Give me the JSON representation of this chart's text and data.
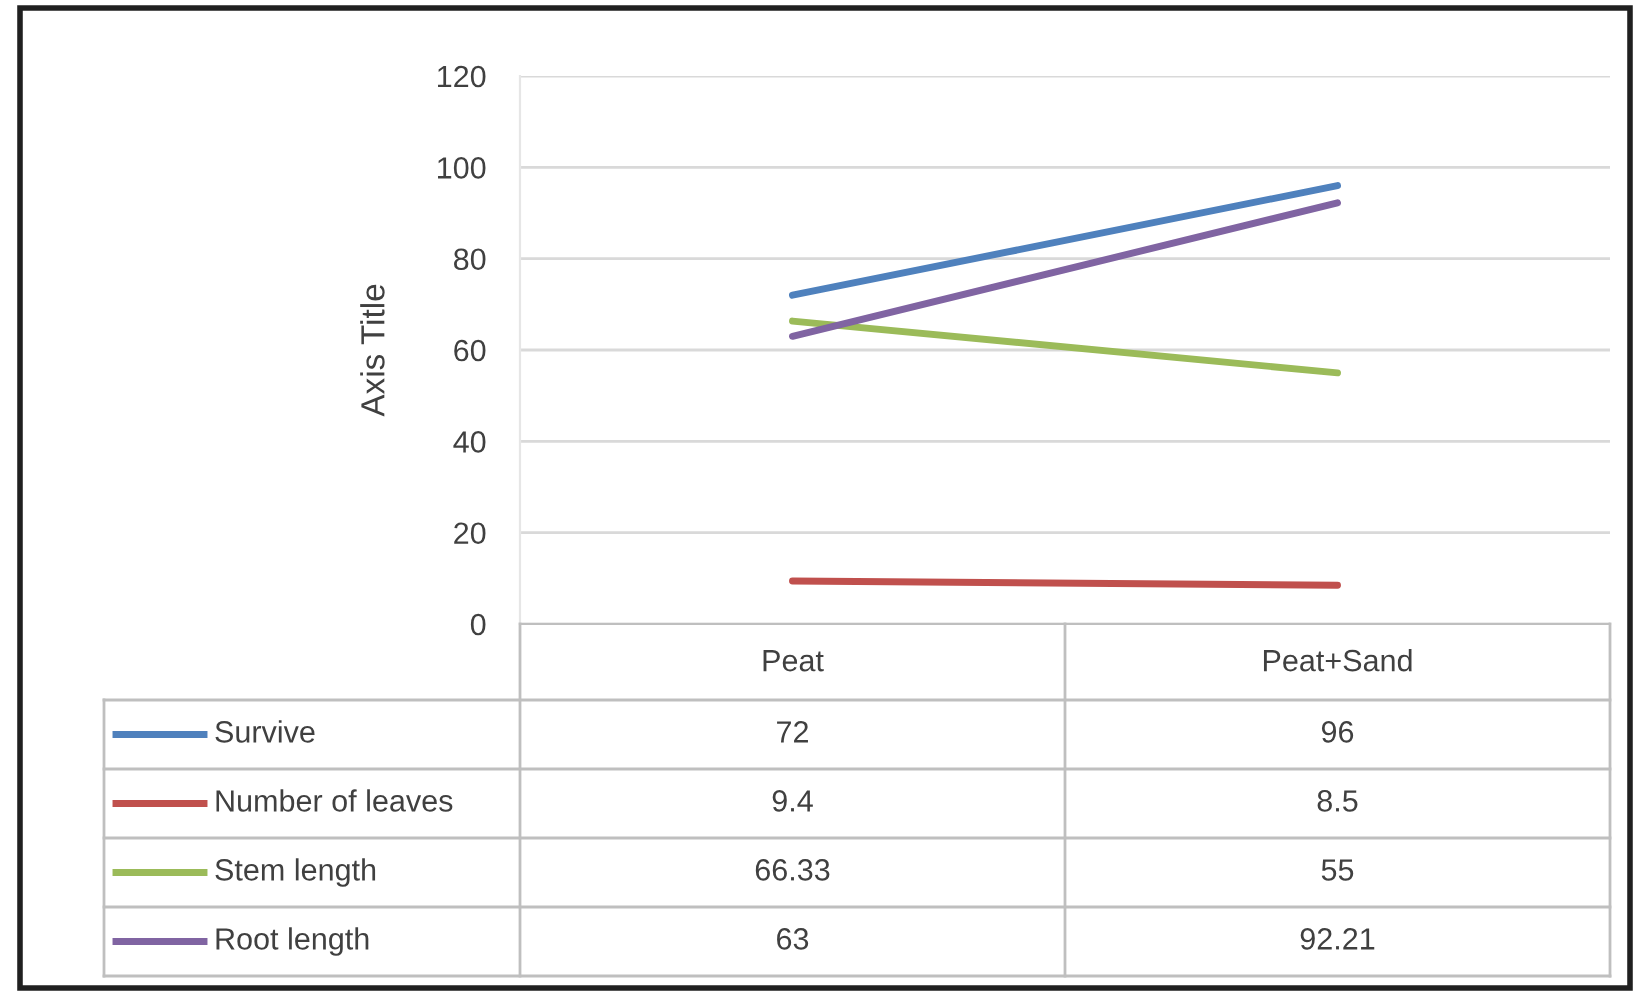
{
  "chart_data": {
    "type": "line",
    "ylabel": "Axis Title",
    "categories": [
      "Peat",
      "Peat+Sand"
    ],
    "series": [
      {
        "name": "Survive",
        "color": "#4f81bd",
        "values": [
          72,
          96
        ]
      },
      {
        "name": "Number of leaves",
        "color": "#c0504d",
        "values": [
          9.4,
          8.5
        ]
      },
      {
        "name": "Stem length",
        "color": "#9bbb59",
        "values": [
          66.33,
          55
        ]
      },
      {
        "name": "Root length",
        "color": "#8064a2",
        "values": [
          63,
          92.21
        ]
      }
    ],
    "ylim": [
      0,
      120
    ],
    "yticks": [
      0,
      20,
      40,
      60,
      80,
      100,
      120
    ],
    "grid": "y",
    "legend": "bottom",
    "data_labels": true,
    "marker": "none",
    "line_style": "solid"
  }
}
